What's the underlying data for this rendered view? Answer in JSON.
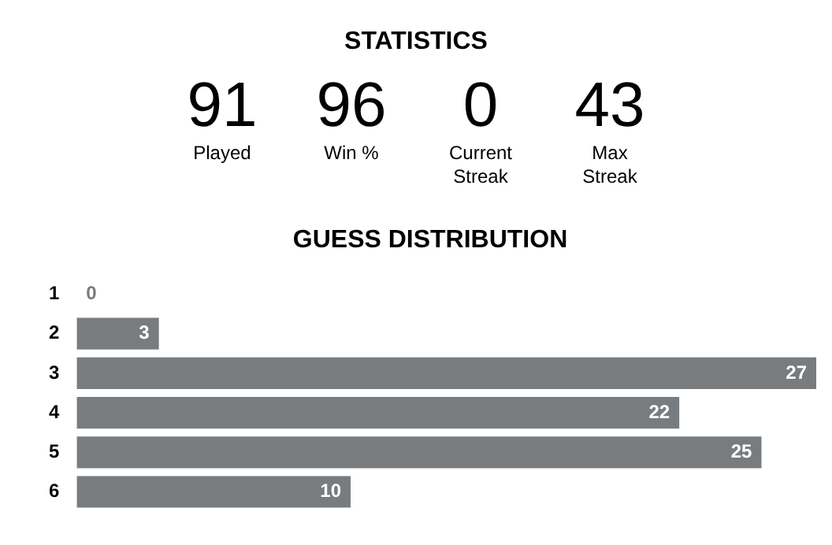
{
  "chart_data": [
    {
      "type": "other",
      "title": "STATISTICS",
      "annotations": [
        "91",
        "Played",
        "96",
        "Win %",
        "0",
        "Current Streak",
        "43",
        "Max Streak"
      ]
    },
    {
      "type": "bar",
      "orientation": "horizontal",
      "title": "GUESS DISTRIBUTION",
      "categories": [
        "1",
        "2",
        "3",
        "4",
        "5",
        "6"
      ],
      "values": [
        0,
        3,
        27,
        22,
        25,
        10
      ],
      "color": "#787c7e",
      "data_labels": true
    }
  ]
}
